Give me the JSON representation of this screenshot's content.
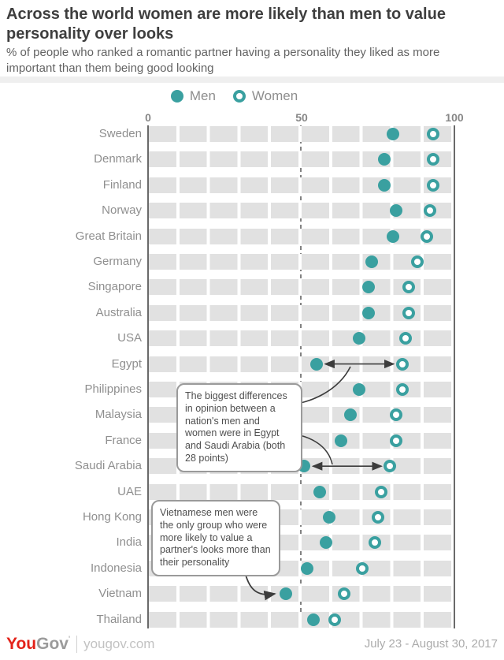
{
  "header": {
    "title": "Across the world women are more likely than men to value personality over looks",
    "subtitle": "% of people who ranked a romantic partner having a personality they liked as more important than them being good looking"
  },
  "legend": {
    "men_label": "Men",
    "women_label": "Women"
  },
  "chart_data": {
    "type": "scatter",
    "subtype": "dumbbell-dot-plot",
    "categories": [
      "Sweden",
      "Denmark",
      "Finland",
      "Norway",
      "Great Britain",
      "Germany",
      "Singapore",
      "Australia",
      "USA",
      "Egypt",
      "Philippines",
      "Malaysia",
      "France",
      "Saudi Arabia",
      "UAE",
      "Hong Kong",
      "India",
      "Indonesia",
      "Vietnam",
      "Thailand"
    ],
    "series": [
      {
        "name": "Men",
        "values": [
          80,
          77,
          77,
          81,
          80,
          73,
          72,
          72,
          69,
          55,
          69,
          66,
          63,
          51,
          56,
          59,
          58,
          52,
          45,
          54
        ]
      },
      {
        "name": "Women",
        "values": [
          93,
          93,
          93,
          92,
          91,
          88,
          85,
          85,
          84,
          83,
          83,
          81,
          81,
          79,
          76,
          75,
          74,
          70,
          64,
          61
        ]
      }
    ],
    "xlim": [
      0,
      100
    ],
    "x_ticks": [
      0,
      50,
      100
    ],
    "reference_line": 50,
    "legend_position": "top",
    "grid": "banded-rows",
    "highlight_arrows": [
      {
        "category": "Egypt",
        "from_series": "Men",
        "to_series": "Women"
      },
      {
        "category": "Saudi Arabia",
        "from_series": "Men",
        "to_series": "Women"
      }
    ],
    "colors": {
      "men_dot": "#3aa0a0",
      "women_ring": "#3aa0a0",
      "row_band": "#e1e1e1",
      "reference_line": "#828282",
      "axis_line": "#6a6a6a"
    }
  },
  "annotations": [
    {
      "id": "biggest-differences",
      "text": "The biggest differences in opinion between a nation's men and women were in Egypt and Saudi Arabia (both 28 points)",
      "points_to": [
        "Egypt",
        "Saudi Arabia"
      ]
    },
    {
      "id": "vietnam-note",
      "text": "Vietnamese men were the only group who were more likely to value a partner's looks more than their personality",
      "points_to": [
        "Vietnam"
      ]
    }
  ],
  "footer": {
    "logo_you": "You",
    "logo_gov": "Gov",
    "logo_mark": "'",
    "site": "yougov.com",
    "date_range": "July 23 - August 30, 2017"
  }
}
